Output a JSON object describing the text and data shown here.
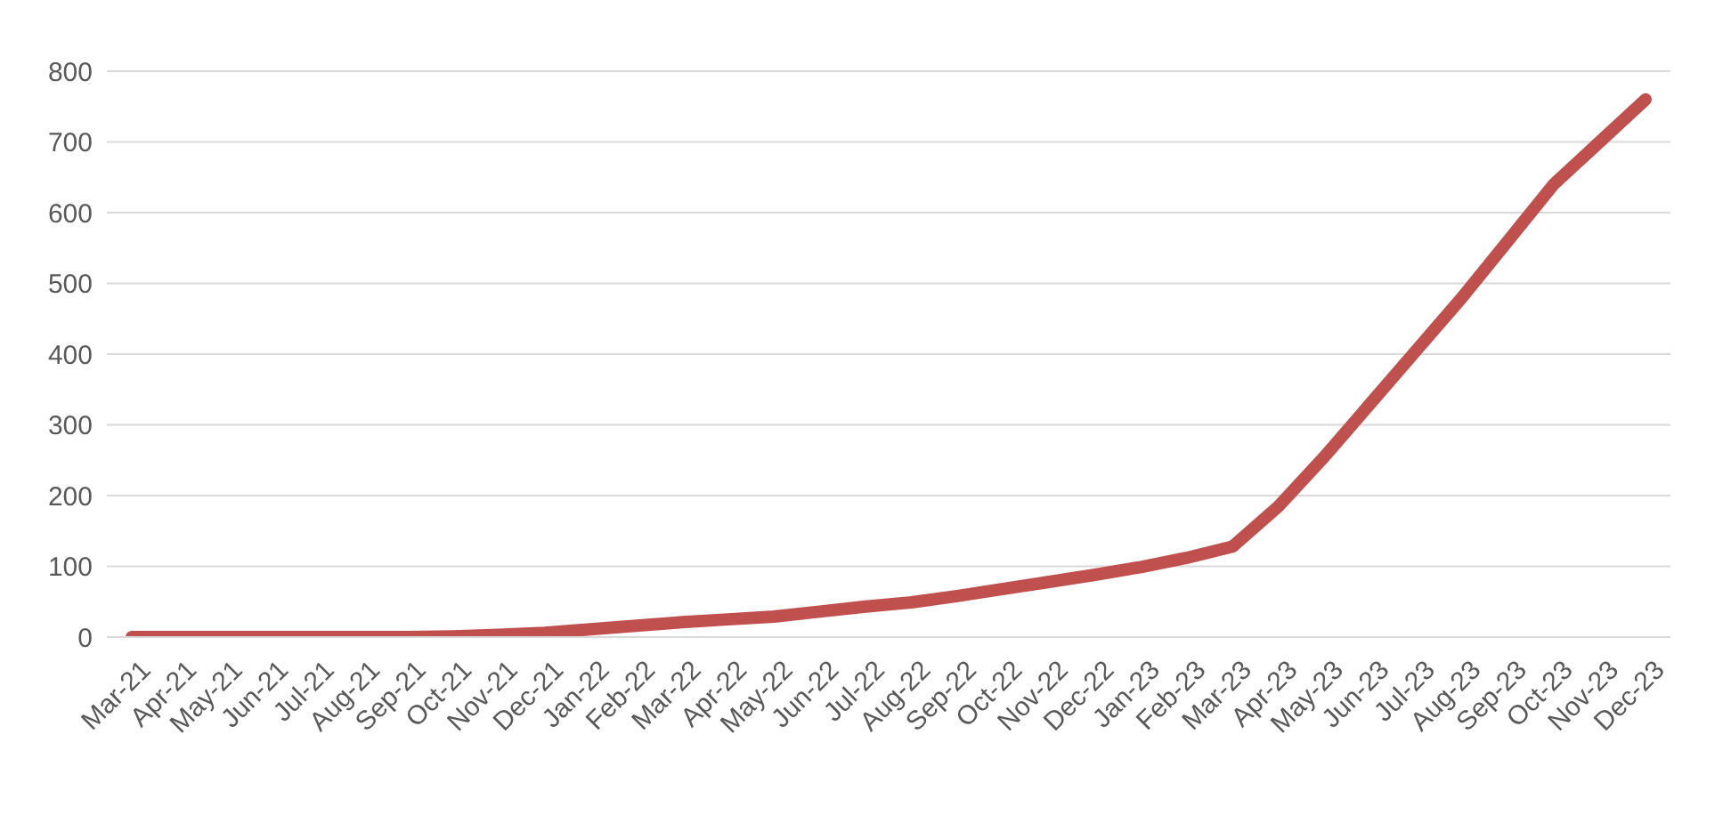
{
  "chart_data": {
    "type": "line",
    "categories": [
      "Mar-21",
      "Apr-21",
      "May-21",
      "Jun-21",
      "Jul-21",
      "Aug-21",
      "Sep-21",
      "Oct-21",
      "Nov-21",
      "Dec-21",
      "Jan-22",
      "Feb-22",
      "Mar-22",
      "Apr-22",
      "May-22",
      "Jun-22",
      "Jul-22",
      "Aug-22",
      "Sep-22",
      "Oct-22",
      "Nov-22",
      "Dec-22",
      "Jan-23",
      "Feb-23",
      "Mar-23",
      "Apr-23",
      "May-23",
      "Jun-23",
      "Jul-23",
      "Aug-23",
      "Sep-23",
      "Oct-23",
      "Nov-23",
      "Dec-23"
    ],
    "series": [
      {
        "color": "#c0504d",
        "values": [
          0,
          0,
          0,
          0,
          0,
          0,
          0,
          1,
          3,
          6,
          11,
          16,
          21,
          25,
          29,
          36,
          43,
          49,
          58,
          68,
          78,
          88,
          99,
          112,
          128,
          185,
          255,
          330,
          405,
          480,
          560,
          640,
          700,
          760
        ]
      }
    ],
    "ylim": [
      0,
      800
    ],
    "yticks": [
      0,
      100,
      200,
      300,
      400,
      500,
      600,
      700,
      800
    ],
    "grid": "y",
    "legend": false,
    "marker": "none",
    "line_style": "solid"
  }
}
